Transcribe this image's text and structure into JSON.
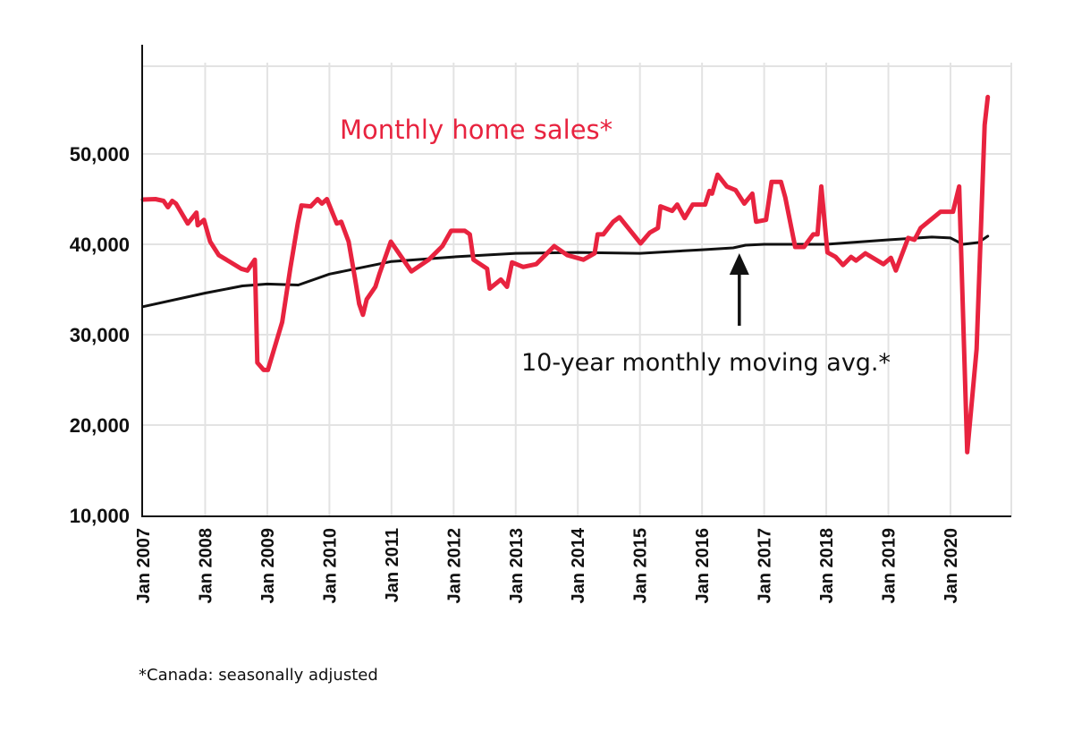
{
  "chart_data": {
    "type": "line",
    "title": "",
    "xlabel": "",
    "ylabel": "",
    "ylim": [
      10000,
      60000
    ],
    "xlim": [
      2007.0,
      2020.75
    ],
    "grid": true,
    "yticks": [
      10000,
      20000,
      30000,
      40000,
      50000
    ],
    "ytick_labels": [
      "10,000",
      "20,000",
      "30,000",
      "40,000",
      "50,000"
    ],
    "xtick_labels": [
      "Jan 2007",
      "Jan 2008",
      "Jan 2009",
      "Jan 2010",
      "Jan 2011",
      "Jan 2012",
      "Jan 2013",
      "Jan 2014",
      "Jan 2015",
      "Jan 2016",
      "Jan 2017",
      "Jan 2018",
      "Jan 2019",
      "Jan 2020"
    ],
    "xticks": [
      2007,
      2008,
      2009,
      2010,
      2011,
      2012,
      2013,
      2014,
      2015,
      2016,
      2017,
      2018,
      2019,
      2020
    ],
    "series": [
      {
        "name": "Monthly home sales*",
        "color": "#e8233f",
        "points": [
          [
            2007.0,
            44950
          ],
          [
            2007.2,
            45000
          ],
          [
            2007.33,
            44800
          ],
          [
            2007.4,
            44100
          ],
          [
            2007.47,
            44800
          ],
          [
            2007.53,
            44500
          ],
          [
            2007.72,
            42300
          ],
          [
            2007.86,
            43500
          ],
          [
            2007.88,
            42100
          ],
          [
            2007.98,
            42700
          ],
          [
            2008.08,
            40300
          ],
          [
            2008.22,
            38800
          ],
          [
            2008.58,
            37300
          ],
          [
            2008.68,
            37100
          ],
          [
            2008.8,
            38300
          ],
          [
            2008.84,
            26900
          ],
          [
            2008.94,
            26100
          ],
          [
            2009.01,
            26100
          ],
          [
            2009.24,
            31400
          ],
          [
            2009.37,
            37300
          ],
          [
            2009.49,
            42300
          ],
          [
            2009.55,
            44300
          ],
          [
            2009.7,
            44200
          ],
          [
            2009.81,
            45000
          ],
          [
            2009.88,
            44500
          ],
          [
            2009.96,
            45000
          ],
          [
            2010.12,
            42300
          ],
          [
            2010.19,
            42500
          ],
          [
            2010.31,
            40300
          ],
          [
            2010.41,
            36300
          ],
          [
            2010.48,
            33400
          ],
          [
            2010.54,
            32200
          ],
          [
            2010.6,
            33900
          ],
          [
            2010.74,
            35300
          ],
          [
            2010.81,
            36800
          ],
          [
            2010.99,
            40300
          ],
          [
            2011.32,
            37000
          ],
          [
            2011.6,
            38300
          ],
          [
            2011.82,
            39800
          ],
          [
            2011.96,
            41500
          ],
          [
            2012.18,
            41500
          ],
          [
            2012.26,
            41100
          ],
          [
            2012.32,
            38300
          ],
          [
            2012.54,
            37300
          ],
          [
            2012.58,
            35100
          ],
          [
            2012.76,
            36100
          ],
          [
            2012.86,
            35300
          ],
          [
            2012.94,
            38000
          ],
          [
            2013.12,
            37500
          ],
          [
            2013.33,
            37800
          ],
          [
            2013.62,
            39800
          ],
          [
            2013.83,
            38800
          ],
          [
            2014.09,
            38300
          ],
          [
            2014.27,
            39000
          ],
          [
            2014.32,
            41100
          ],
          [
            2014.41,
            41100
          ],
          [
            2014.57,
            42500
          ],
          [
            2014.67,
            43000
          ],
          [
            2015.01,
            40100
          ],
          [
            2015.16,
            41300
          ],
          [
            2015.29,
            41800
          ],
          [
            2015.33,
            44200
          ],
          [
            2015.52,
            43700
          ],
          [
            2015.6,
            44400
          ],
          [
            2015.72,
            42900
          ],
          [
            2015.85,
            44400
          ],
          [
            2016.05,
            44400
          ],
          [
            2016.12,
            45900
          ],
          [
            2016.16,
            45600
          ],
          [
            2016.25,
            47700
          ],
          [
            2016.4,
            46400
          ],
          [
            2016.54,
            46000
          ],
          [
            2016.68,
            44500
          ],
          [
            2016.81,
            45600
          ],
          [
            2016.87,
            42500
          ],
          [
            2017.03,
            42700
          ],
          [
            2017.12,
            46900
          ],
          [
            2017.27,
            46900
          ],
          [
            2017.34,
            45200
          ],
          [
            2017.5,
            39700
          ],
          [
            2017.64,
            39700
          ],
          [
            2017.79,
            41100
          ],
          [
            2017.86,
            41100
          ],
          [
            2017.92,
            46400
          ],
          [
            2018.02,
            39100
          ],
          [
            2018.15,
            38600
          ],
          [
            2018.27,
            37700
          ],
          [
            2018.4,
            38600
          ],
          [
            2018.48,
            38200
          ],
          [
            2018.63,
            39000
          ],
          [
            2018.92,
            37800
          ],
          [
            2019.04,
            38500
          ],
          [
            2019.12,
            37100
          ],
          [
            2019.32,
            40700
          ],
          [
            2019.42,
            40500
          ],
          [
            2019.52,
            41800
          ],
          [
            2019.84,
            43600
          ],
          [
            2020.04,
            43600
          ],
          [
            2020.14,
            46400
          ],
          [
            2020.27,
            17000
          ],
          [
            2020.42,
            28400
          ],
          [
            2020.55,
            53200
          ],
          [
            2020.6,
            56300
          ]
        ]
      },
      {
        "name": "10-year monthly moving avg.*",
        "color": "#111111",
        "points": [
          [
            2007.0,
            33100
          ],
          [
            2008.0,
            34600
          ],
          [
            2008.6,
            35400
          ],
          [
            2009.0,
            35600
          ],
          [
            2009.5,
            35500
          ],
          [
            2010.0,
            36700
          ],
          [
            2011.0,
            38100
          ],
          [
            2012.0,
            38600
          ],
          [
            2013.0,
            39000
          ],
          [
            2014.0,
            39100
          ],
          [
            2015.0,
            39000
          ],
          [
            2016.0,
            39400
          ],
          [
            2016.5,
            39600
          ],
          [
            2016.7,
            39900
          ],
          [
            2017.0,
            40000
          ],
          [
            2018.0,
            40000
          ],
          [
            2019.0,
            40500
          ],
          [
            2019.7,
            40800
          ],
          [
            2020.0,
            40700
          ],
          [
            2020.2,
            40000
          ],
          [
            2020.45,
            40200
          ],
          [
            2020.6,
            40900
          ]
        ]
      }
    ],
    "annotations": {
      "red_label": "Monthly home sales*",
      "black_label": "10-year monthly moving avg.*",
      "arrow_year": 2016.6
    },
    "footnote": "*Canada: seasonally adjusted"
  }
}
